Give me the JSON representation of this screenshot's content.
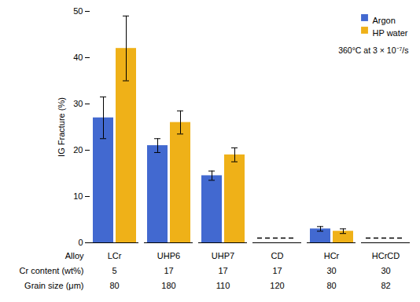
{
  "chart_data": {
    "type": "bar",
    "categories": [
      "LCr",
      "UHP6",
      "UHP7",
      "CD",
      "HCr",
      "HCrCD"
    ],
    "series": [
      {
        "name": "Argon",
        "values": [
          27,
          21,
          14.5,
          null,
          3.0,
          null
        ],
        "errors": [
          4.5,
          1.5,
          1.0,
          null,
          0.5,
          null
        ]
      },
      {
        "name": "HP water",
        "values": [
          42,
          26,
          19,
          null,
          2.5,
          null
        ],
        "errors": [
          7,
          2.5,
          1.5,
          null,
          0.5,
          null
        ]
      },
      {
        "type": "line",
        "line_style": "dashed",
        "values": [
          null,
          null,
          null,
          1.0,
          null,
          1.0
        ]
      }
    ],
    "ylabel": "IG Fracture (%)",
    "ylim": [
      0,
      50
    ],
    "yticks": [
      0,
      10,
      20,
      30,
      40,
      50
    ],
    "grid": false,
    "tick_labels": "y",
    "legend": "upper right",
    "annotations": [
      "360°C at 3 × 10⁻⁷/s"
    ],
    "table": [
      {
        "label": "Alloy",
        "values": [
          "LCr",
          "UHP6",
          "UHP7",
          "CD",
          "HCr",
          "HCrCD"
        ]
      },
      {
        "label": "Cr content (wt%)",
        "values": [
          "5",
          "17",
          "17",
          "17",
          "30",
          "30"
        ]
      },
      {
        "label": "Grain size (μm)",
        "values": [
          "80",
          "180",
          "110",
          "120",
          "80",
          "82"
        ]
      }
    ]
  }
}
